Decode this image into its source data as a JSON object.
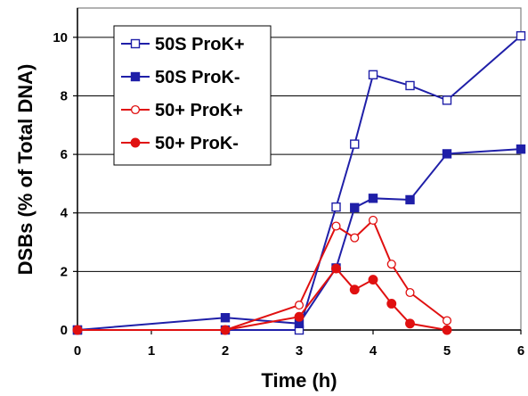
{
  "chart_data": {
    "type": "line",
    "xlabel": "Time (h)",
    "ylabel": "DSBs (% of Total DNA)",
    "xlim": [
      0,
      6
    ],
    "ylim": [
      0,
      11
    ],
    "xticks": [
      "0",
      "1",
      "2",
      "3",
      "4",
      "5",
      "6"
    ],
    "yticks": [
      "0",
      "2",
      "4",
      "6",
      "8",
      "10"
    ],
    "grid": "horizontal",
    "legend_position": "top-left",
    "series": [
      {
        "name": "50S ProK+",
        "color": "#1f1fa8",
        "marker": "square-open",
        "x": [
          0,
          2,
          3,
          3.5,
          3.75,
          4,
          4.5,
          5,
          6
        ],
        "y": [
          0,
          0,
          0,
          4.2,
          6.35,
          8.72,
          8.35,
          7.85,
          10.05
        ]
      },
      {
        "name": "50S ProK-",
        "color": "#1f1fa8",
        "marker": "square-filled",
        "x": [
          0,
          2,
          3,
          3.5,
          3.75,
          4,
          4.5,
          5,
          6
        ],
        "y": [
          0,
          0.42,
          0.22,
          2.12,
          4.18,
          4.5,
          4.45,
          6.02,
          6.18
        ]
      },
      {
        "name": "50+ ProK+",
        "color": "#e01010",
        "marker": "circle-open",
        "x": [
          0,
          2,
          3,
          3.5,
          3.75,
          4,
          4.25,
          4.5,
          5
        ],
        "y": [
          0,
          0,
          0.85,
          3.55,
          3.15,
          3.75,
          2.25,
          1.28,
          0.32
        ]
      },
      {
        "name": "50+ ProK-",
        "color": "#e01010",
        "marker": "circle-filled",
        "x": [
          0,
          2,
          3,
          3.5,
          3.75,
          4,
          4.25,
          4.5,
          5
        ],
        "y": [
          0,
          0,
          0.45,
          2.1,
          1.38,
          1.72,
          0.9,
          0.22,
          0
        ]
      }
    ]
  }
}
